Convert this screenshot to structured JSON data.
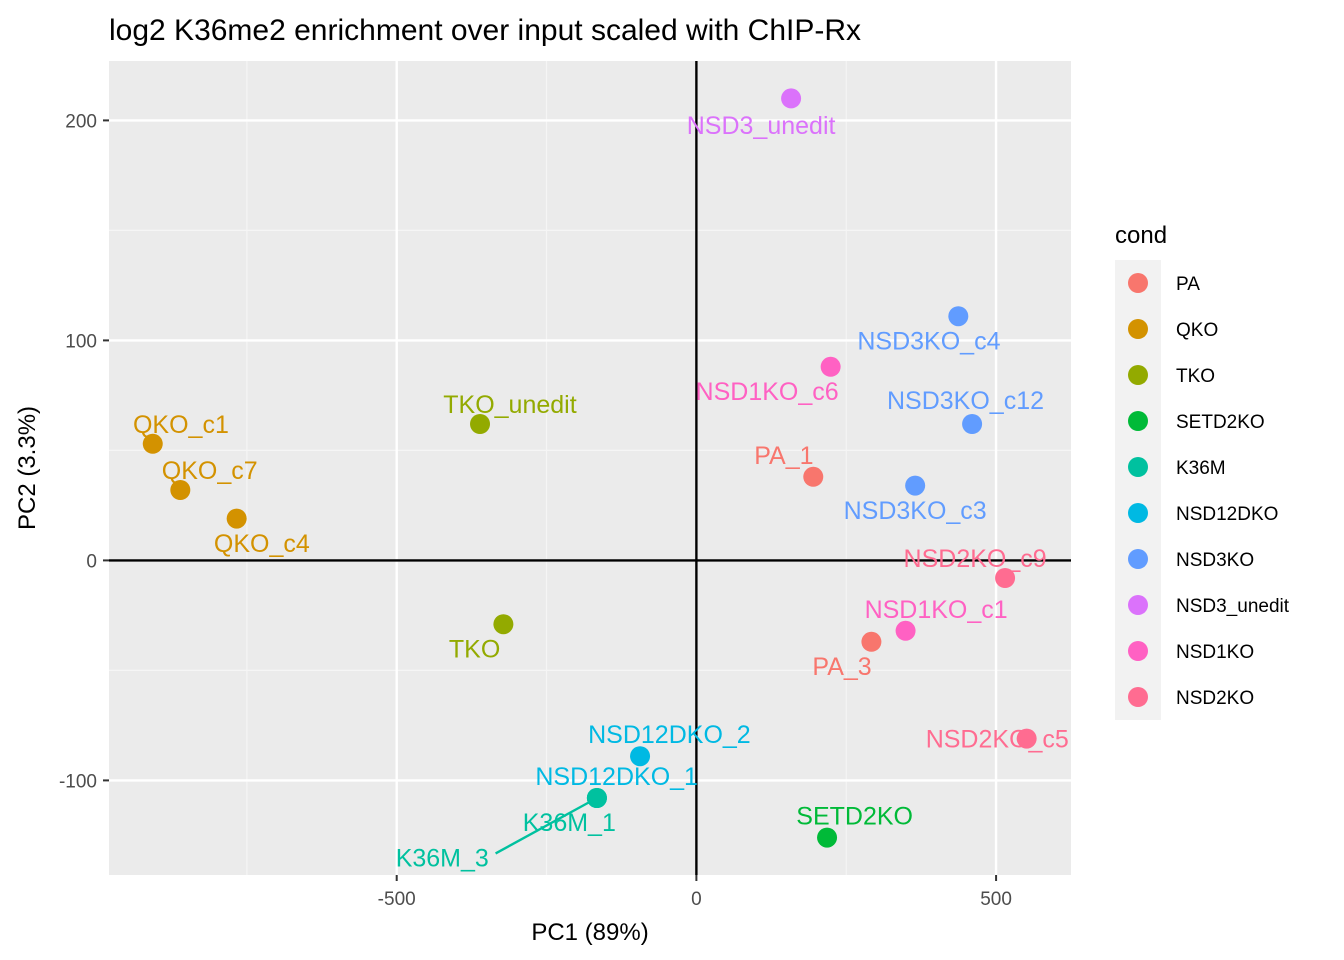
{
  "chart_data": {
    "type": "scatter",
    "title": "log2 K36me2 enrichment over input scaled with ChIP-Rx",
    "xlabel": "PC1 (89%)",
    "ylabel": "PC2 (3.3%)",
    "xlim": [
      -980,
      625
    ],
    "ylim": [
      -143,
      227
    ],
    "xticks": [
      -500,
      0,
      500
    ],
    "xtick_labels": [
      "-500",
      "0",
      "500"
    ],
    "yticks": [
      -100,
      0,
      100,
      200
    ],
    "ytick_labels": [
      "-100",
      "0",
      "100",
      "200"
    ],
    "grid": true,
    "legend": {
      "title": "cond",
      "position": "right",
      "entries": [
        {
          "name": "PA",
          "color": "#F8766D"
        },
        {
          "name": "QKO",
          "color": "#D39200"
        },
        {
          "name": "TKO",
          "color": "#93AA00"
        },
        {
          "name": "SETD2KO",
          "color": "#00BA38"
        },
        {
          "name": "K36M",
          "color": "#00C19F"
        },
        {
          "name": "NSD12DKO",
          "color": "#00B9E3"
        },
        {
          "name": "NSD3KO",
          "color": "#619CFF"
        },
        {
          "name": "NSD3_unedit",
          "color": "#DB72FB"
        },
        {
          "name": "NSD1KO",
          "color": "#FF61C3"
        },
        {
          "name": "NSD2KO",
          "color": "#FF6C91"
        }
      ]
    },
    "points": [
      {
        "label": "NSD3_unedit",
        "cond": "NSD3_unedit",
        "x": 158,
        "y": 210,
        "label_x": 108,
        "label_y": 198
      },
      {
        "label": "NSD3KO_c4",
        "cond": "NSD3KO",
        "x": 437,
        "y": 111,
        "label_x": 388,
        "label_y": 100
      },
      {
        "label": "NSD1KO_c6",
        "cond": "NSD1KO",
        "x": 224,
        "y": 88,
        "label_x": 118,
        "label_y": 77
      },
      {
        "label": "NSD3KO_c12",
        "cond": "NSD3KO",
        "x": 460,
        "y": 62,
        "label_x": 449,
        "label_y": 73
      },
      {
        "label": "PA_1",
        "cond": "PA",
        "x": 195,
        "y": 38,
        "label_x": 146,
        "label_y": 48
      },
      {
        "label": "NSD3KO_c3",
        "cond": "NSD3KO",
        "x": 365,
        "y": 34,
        "label_x": 365,
        "label_y": 23
      },
      {
        "label": "NSD2KO_c9",
        "cond": "NSD2KO",
        "x": 515,
        "y": -8,
        "label_x": 465,
        "label_y": 1
      },
      {
        "label": "NSD1KO_c1",
        "cond": "NSD1KO",
        "x": 349,
        "y": -32,
        "label_x": 400,
        "label_y": -22
      },
      {
        "label": "PA_3",
        "cond": "PA",
        "x": 292,
        "y": -37,
        "label_x": 243,
        "label_y": -48
      },
      {
        "label": "NSD2KO_c5",
        "cond": "NSD2KO",
        "x": 551,
        "y": -81,
        "label_x": 502,
        "label_y": -81
      },
      {
        "label": "QKO_c1",
        "cond": "QKO",
        "x": -907,
        "y": 53,
        "label_x": -860,
        "label_y": 62
      },
      {
        "label": "QKO_c7",
        "cond": "QKO",
        "x": -861,
        "y": 32,
        "label_x": -812,
        "label_y": 41
      },
      {
        "label": "QKO_c4",
        "cond": "QKO",
        "x": -767,
        "y": 19,
        "label_x": -725,
        "label_y": 8
      },
      {
        "label": "TKO_unedit",
        "cond": "TKO",
        "x": -361,
        "y": 62,
        "label_x": -311,
        "label_y": 71
      },
      {
        "label": "TKO",
        "cond": "TKO",
        "x": -322,
        "y": -29,
        "label_x": -370,
        "label_y": -40
      },
      {
        "label": "NSD12DKO_2",
        "cond": "NSD12DKO",
        "x": -94,
        "y": -89,
        "label_x": -45,
        "label_y": -79
      },
      {
        "label": "NSD12DKO_1",
        "cond": "NSD12DKO",
        "x": -166,
        "y": -108,
        "label_x": -133,
        "label_y": -98,
        "drawn": false
      },
      {
        "label": "K36M_1",
        "cond": "K36M",
        "x": -166,
        "y": -108,
        "label_x": -212,
        "label_y": -119
      },
      {
        "label": "K36M_3",
        "cond": "K36M",
        "x": -166,
        "y": -108,
        "label_x": -424,
        "label_y": -135,
        "leader": [
          -335,
          -135
        ]
      },
      {
        "label": "SETD2KO",
        "cond": "SETD2KO",
        "x": 218,
        "y": -126,
        "label_x": 264,
        "label_y": -116
      }
    ]
  }
}
